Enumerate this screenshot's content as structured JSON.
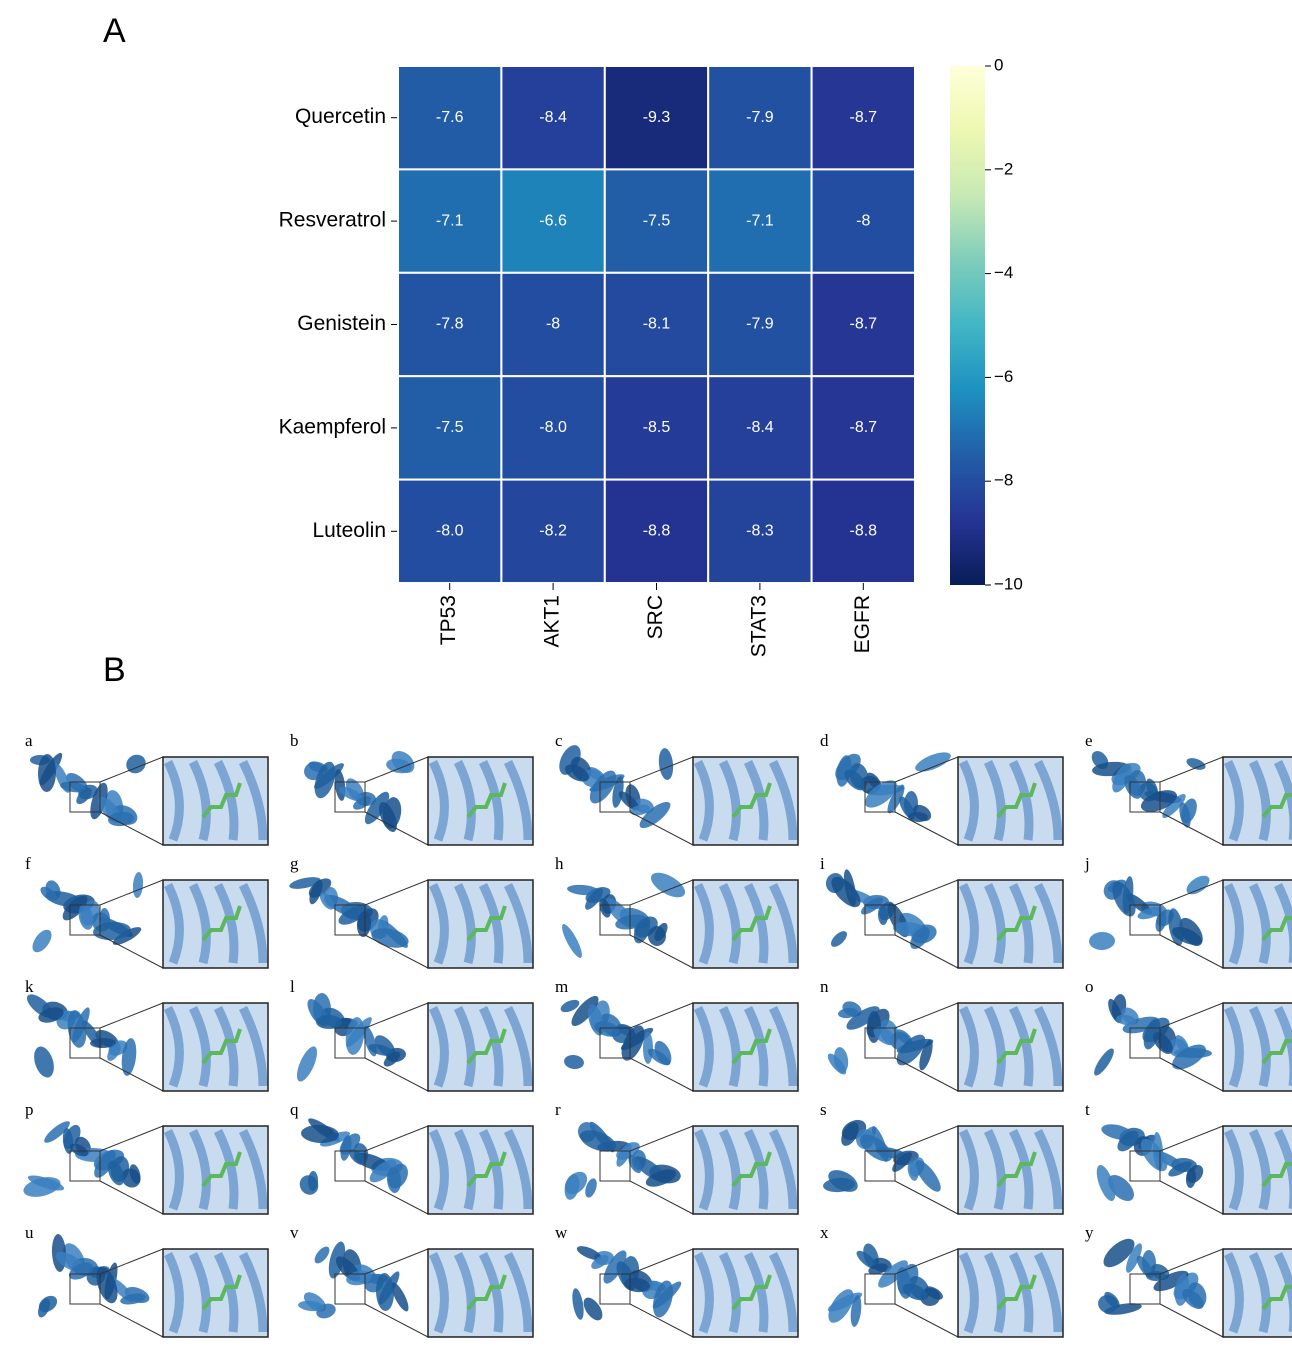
{
  "chart_data": {
    "type": "heatmap",
    "panel_label": "A",
    "rows": [
      "Quercetin",
      "Resveratrol",
      "Genistein",
      "Kaempferol",
      "Luteolin"
    ],
    "columns": [
      "TP53",
      "AKT1",
      "SRC",
      "STAT3",
      "EGFR"
    ],
    "values": [
      [
        -7.6,
        -8.4,
        -9.3,
        -7.9,
        -8.7
      ],
      [
        -7.1,
        -6.6,
        -7.5,
        -7.1,
        -8
      ],
      [
        -7.8,
        -8,
        -8.1,
        -7.9,
        -8.7
      ],
      [
        -7.5,
        -8.0,
        -8.5,
        -8.4,
        -8.7
      ],
      [
        -8.0,
        -8.2,
        -8.8,
        -8.3,
        -8.8
      ]
    ],
    "value_labels": [
      [
        "-7.6",
        "-8.4",
        "-9.3",
        "-7.9",
        "-8.7"
      ],
      [
        "-7.1",
        "-6.6",
        "-7.5",
        "-7.1",
        "-8"
      ],
      [
        "-7.8",
        "-8",
        "-8.1",
        "-7.9",
        "-8.7"
      ],
      [
        "-7.5",
        "-8.0",
        "-8.5",
        "-8.4",
        "-8.7"
      ],
      [
        "-8.0",
        "-8.2",
        "-8.8",
        "-8.3",
        "-8.8"
      ]
    ],
    "colormap": "YlGnBu_r",
    "clim": [
      -10,
      0
    ],
    "cticks": [
      0,
      {
        "value": -2,
        "label": "−2"
      },
      {
        "value": -4,
        "label": "−4"
      },
      {
        "value": -6,
        "label": "−6"
      },
      {
        "value": -8,
        "label": "−8"
      },
      {
        "value": -10,
        "label": "−10"
      }
    ]
  },
  "panel_b": {
    "label": "B",
    "panels": [
      "a",
      "b",
      "c",
      "d",
      "e",
      "f",
      "g",
      "h",
      "i",
      "j",
      "k",
      "l",
      "m",
      "n",
      "o",
      "p",
      "q",
      "r",
      "s",
      "t",
      "u",
      "v",
      "w",
      "x",
      "y"
    ]
  }
}
